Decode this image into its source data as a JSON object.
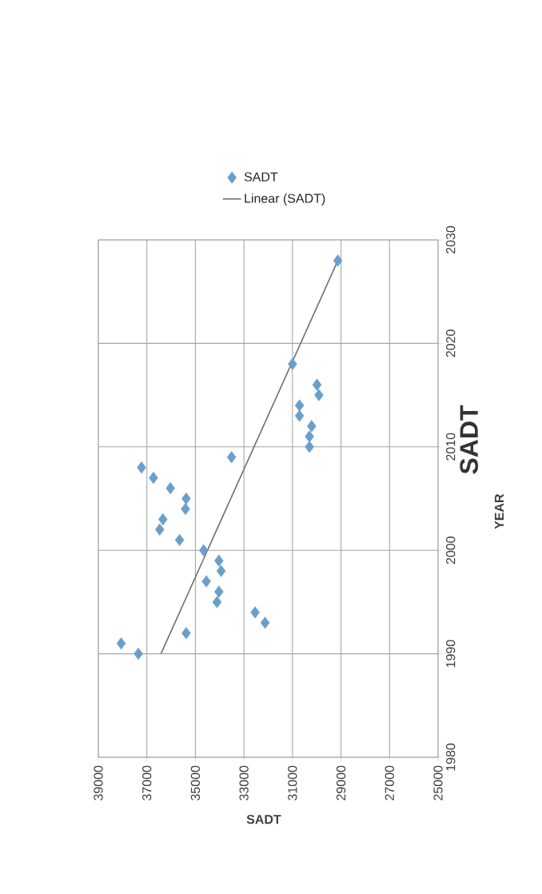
{
  "chart_data": {
    "type": "scatter",
    "title": "SADT",
    "xlabel": "SADT",
    "ylabel": "YEAR",
    "xlim": [
      39000,
      25000
    ],
    "xticks": [
      39000,
      37000,
      35000,
      33000,
      31000,
      29000,
      27000,
      25000
    ],
    "ylim": [
      1980,
      2030
    ],
    "yticks": [
      1980,
      1990,
      2000,
      2010,
      2020,
      2030
    ],
    "grid": true,
    "legend": "top",
    "series": [
      {
        "name": "SADT",
        "marker": "diamond",
        "color": "#6a9fcc",
        "x": [
          37350,
          38060,
          35380,
          32130,
          32540,
          34110,
          34030,
          34550,
          33940,
          34030,
          34660,
          35650,
          36470,
          36340,
          35410,
          35380,
          36030,
          36730,
          37220,
          33510,
          30300,
          30300,
          30210,
          30710,
          30710,
          29910,
          29990,
          31000,
          29130
        ],
        "values": [
          1990,
          1991,
          1992,
          1993,
          1994,
          1995,
          1996,
          1997,
          1998,
          1999,
          2000,
          2001,
          2002,
          2003,
          2004,
          2005,
          2006,
          2007,
          2008,
          2009,
          2010,
          2011,
          2012,
          2013,
          2014,
          2015,
          2016,
          2018,
          2028
        ]
      },
      {
        "name": "Linear (SADT)",
        "type": "line",
        "color": "#707070",
        "x": [
          36420,
          29130
        ],
        "values": [
          1990,
          2028
        ]
      }
    ]
  }
}
